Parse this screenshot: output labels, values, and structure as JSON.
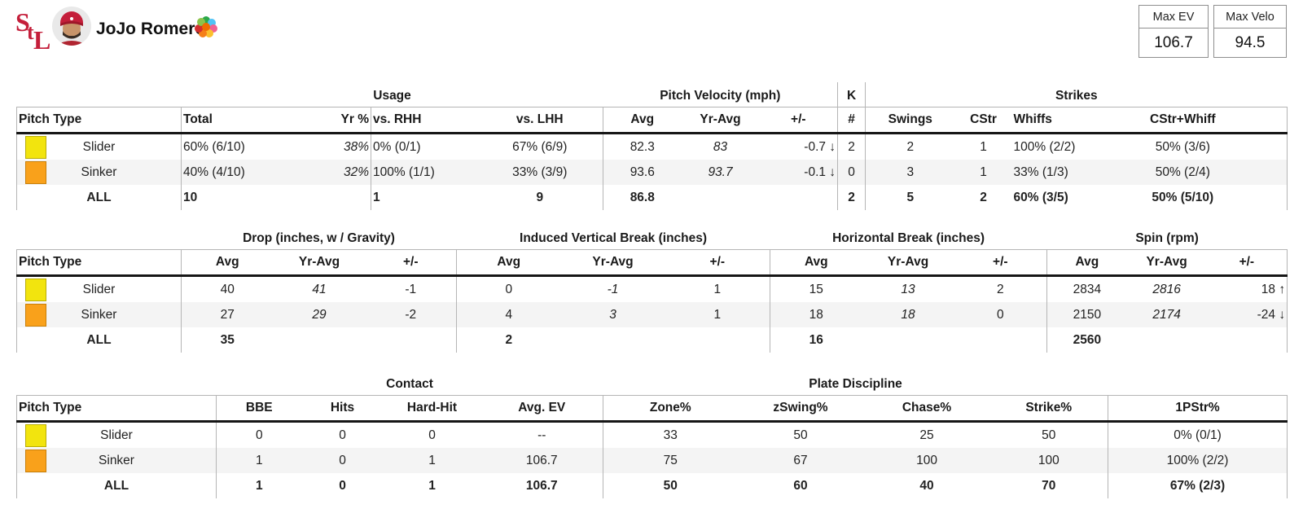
{
  "header": {
    "player_name": "JoJo Romero",
    "team_monogram": "StL",
    "stat_boxes": [
      {
        "label": "Max EV",
        "value": "106.7"
      },
      {
        "label": "Max Velo",
        "value": "94.5"
      }
    ]
  },
  "pitch_colors": {
    "Slider": {
      "bg": "#f2e40e",
      "border": "#b9ad07"
    },
    "Sinker": {
      "bg": "#f9a11b",
      "border": "#c97f07"
    }
  },
  "tables": [
    {
      "id": "usage",
      "pitch_header": "Pitch Type",
      "groups": [
        {
          "label": "",
          "span": 1
        },
        {
          "label": "Usage",
          "span": 4
        },
        {
          "label": "Pitch Velocity (mph)",
          "span": 3
        },
        {
          "label": "K",
          "span": 1,
          "boxed": true
        },
        {
          "label": "Strikes",
          "span": 4
        }
      ],
      "columns": [
        {
          "label": "Total",
          "align": "left",
          "gb": true
        },
        {
          "label": "Yr %",
          "align": "right",
          "italic": true
        },
        {
          "label": "vs. RHH",
          "align": "left",
          "gb": true
        },
        {
          "label": "vs. LHH",
          "align": "center"
        },
        {
          "label": "Avg",
          "align": "center",
          "gb": true
        },
        {
          "label": "Yr-Avg",
          "align": "center",
          "italic": true
        },
        {
          "label": "+/-",
          "align": "right",
          "headerAlign": "center",
          "delta": true
        },
        {
          "label": "#",
          "align": "center",
          "gb": true
        },
        {
          "label": "Swings",
          "align": "center",
          "gb": true
        },
        {
          "label": "CStr",
          "align": "center"
        },
        {
          "label": "Whiffs",
          "align": "left"
        },
        {
          "label": "CStr+Whiff",
          "align": "center"
        }
      ],
      "rows": [
        {
          "pitch": "Slider",
          "cells": [
            "60% (6/10)",
            "38%",
            "0% (0/1)",
            "67% (6/9)",
            "82.3",
            "83",
            "-0.7 ↓",
            "2",
            "2",
            "1",
            "100% (2/2)",
            "50% (3/6)"
          ]
        },
        {
          "pitch": "Sinker",
          "cells": [
            "40% (4/10)",
            "32%",
            "100% (1/1)",
            "33% (3/9)",
            "93.6",
            "93.7",
            "-0.1 ↓",
            "0",
            "3",
            "1",
            "33% (1/3)",
            "50% (2/4)"
          ]
        },
        {
          "pitch": "ALL",
          "total": true,
          "cells": [
            "10",
            "",
            "1",
            "9",
            "86.8",
            "",
            "",
            "2",
            "5",
            "2",
            "60% (3/5)",
            "50% (5/10)"
          ]
        }
      ]
    },
    {
      "id": "movement",
      "pitch_header": "Pitch Type",
      "groups": [
        {
          "label": "",
          "span": 1
        },
        {
          "label": "Drop (inches, w / Gravity)",
          "span": 3
        },
        {
          "label": "Induced Vertical Break (inches)",
          "span": 3
        },
        {
          "label": "Horizontal Break (inches)",
          "span": 3
        },
        {
          "label": "Spin (rpm)",
          "span": 3
        }
      ],
      "columns": [
        {
          "label": "Avg",
          "align": "center",
          "gb": true
        },
        {
          "label": "Yr-Avg",
          "align": "center",
          "italic": true
        },
        {
          "label": "+/-",
          "align": "center"
        },
        {
          "label": "Avg",
          "align": "center",
          "gb": true
        },
        {
          "label": "Yr-Avg",
          "align": "center",
          "italic": true
        },
        {
          "label": "+/-",
          "align": "center"
        },
        {
          "label": "Avg",
          "align": "center",
          "gb": true
        },
        {
          "label": "Yr-Avg",
          "align": "center",
          "italic": true
        },
        {
          "label": "+/-",
          "align": "center"
        },
        {
          "label": "Avg",
          "align": "center",
          "gb": true
        },
        {
          "label": "Yr-Avg",
          "align": "center",
          "italic": true
        },
        {
          "label": "+/-",
          "align": "right",
          "headerAlign": "center",
          "delta": true
        }
      ],
      "rows": [
        {
          "pitch": "Slider",
          "cells": [
            "40",
            "41",
            "-1",
            "0",
            "-1",
            "1",
            "15",
            "13",
            "2",
            "2834",
            "2816",
            "18 ↑"
          ]
        },
        {
          "pitch": "Sinker",
          "cells": [
            "27",
            "29",
            "-2",
            "4",
            "3",
            "1",
            "18",
            "18",
            "0",
            "2150",
            "2174",
            "-24 ↓"
          ]
        },
        {
          "pitch": "ALL",
          "total": true,
          "cells": [
            "35",
            "",
            "",
            "2",
            "",
            "",
            "16",
            "",
            "",
            "2560",
            "",
            ""
          ]
        }
      ]
    },
    {
      "id": "contact",
      "pitch_header": "Pitch Type",
      "groups": [
        {
          "label": "",
          "span": 1
        },
        {
          "label": "Contact",
          "span": 4
        },
        {
          "label": "Plate Discipline",
          "span": 4
        },
        {
          "label": "",
          "span": 1
        }
      ],
      "columns": [
        {
          "label": "BBE",
          "align": "center",
          "gb": true
        },
        {
          "label": "Hits",
          "align": "center"
        },
        {
          "label": "Hard-Hit",
          "align": "center"
        },
        {
          "label": "Avg. EV",
          "align": "center"
        },
        {
          "label": "Zone%",
          "align": "center",
          "gb": true
        },
        {
          "label": "zSwing%",
          "align": "center"
        },
        {
          "label": "Chase%",
          "align": "center"
        },
        {
          "label": "Strike%",
          "align": "center"
        },
        {
          "label": "1PStr%",
          "align": "center",
          "gb": true
        }
      ],
      "rows": [
        {
          "pitch": "Slider",
          "cells": [
            "0",
            "0",
            "0",
            "--",
            "33",
            "50",
            "25",
            "50",
            "0% (0/1)"
          ]
        },
        {
          "pitch": "Sinker",
          "cells": [
            "1",
            "0",
            "1",
            "106.7",
            "75",
            "67",
            "100",
            "100",
            "100% (2/2)"
          ]
        },
        {
          "pitch": "ALL",
          "total": true,
          "cells": [
            "1",
            "0",
            "1",
            "106.7",
            "50",
            "60",
            "40",
            "70",
            "67% (2/3)"
          ]
        }
      ]
    }
  ]
}
